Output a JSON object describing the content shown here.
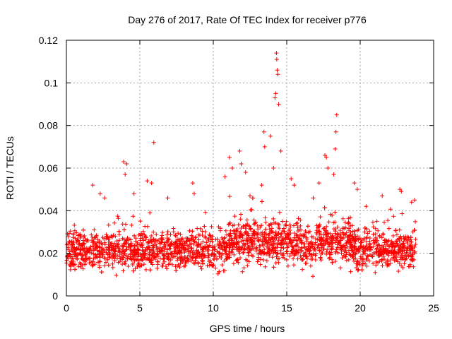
{
  "chart_data": {
    "type": "scatter",
    "title": "Day 276 of 2017, Rate Of TEC Index for receiver p776",
    "xlabel": "GPS time / hours",
    "ylabel": "ROTI / TECUs",
    "xlim": [
      0,
      25
    ],
    "ylim": [
      0,
      0.12
    ],
    "x_ticks": [
      0,
      5,
      10,
      15,
      20,
      25
    ],
    "x_tick_labels": [
      "0",
      "5",
      "10",
      "15",
      "20",
      "25"
    ],
    "y_ticks": [
      0,
      0.02,
      0.04,
      0.06,
      0.08,
      0.1,
      0.12
    ],
    "y_tick_labels": [
      "0",
      "0.02",
      "0.04",
      "0.06",
      "0.08",
      "0.1",
      "0.12"
    ],
    "grid": true,
    "marker": "plus",
    "series": [
      {
        "name": "ROTI",
        "color": "#ff0000",
        "data_range_hours": [
          0,
          23.8
        ],
        "typical_band": [
          0.008,
          0.035
        ],
        "points": [
          [
            1.8,
            0.052
          ],
          [
            2.3,
            0.048
          ],
          [
            2.6,
            0.046
          ],
          [
            3.9,
            0.063
          ],
          [
            4.0,
            0.057
          ],
          [
            4.1,
            0.062
          ],
          [
            4.6,
            0.048
          ],
          [
            5.5,
            0.054
          ],
          [
            5.8,
            0.053
          ],
          [
            5.95,
            0.072
          ],
          [
            6.9,
            0.046
          ],
          [
            8.6,
            0.053
          ],
          [
            8.7,
            0.048
          ],
          [
            10.8,
            0.056
          ],
          [
            11.1,
            0.065
          ],
          [
            11.3,
            0.06
          ],
          [
            11.8,
            0.068
          ],
          [
            11.9,
            0.062
          ],
          [
            12.2,
            0.058
          ],
          [
            12.5,
            0.047
          ],
          [
            13.3,
            0.052
          ],
          [
            13.45,
            0.077
          ],
          [
            13.5,
            0.07
          ],
          [
            13.9,
            0.075
          ],
          [
            14.1,
            0.06
          ],
          [
            14.2,
            0.093
          ],
          [
            14.25,
            0.095
          ],
          [
            14.3,
            0.114
          ],
          [
            14.32,
            0.111
          ],
          [
            14.35,
            0.106
          ],
          [
            14.4,
            0.104
          ],
          [
            14.45,
            0.09
          ],
          [
            14.6,
            0.068
          ],
          [
            15.3,
            0.055
          ],
          [
            15.5,
            0.052
          ],
          [
            16.8,
            0.046
          ],
          [
            17.2,
            0.053
          ],
          [
            17.6,
            0.066
          ],
          [
            17.7,
            0.065
          ],
          [
            17.8,
            0.06
          ],
          [
            18.2,
            0.057
          ],
          [
            18.3,
            0.069
          ],
          [
            18.35,
            0.077
          ],
          [
            18.4,
            0.085
          ],
          [
            19.6,
            0.053
          ],
          [
            19.8,
            0.05
          ],
          [
            20.4,
            0.042
          ],
          [
            21.5,
            0.047
          ],
          [
            22.7,
            0.05
          ],
          [
            22.8,
            0.049
          ],
          [
            23.5,
            0.044
          ],
          [
            23.7,
            0.045
          ]
        ]
      }
    ]
  }
}
